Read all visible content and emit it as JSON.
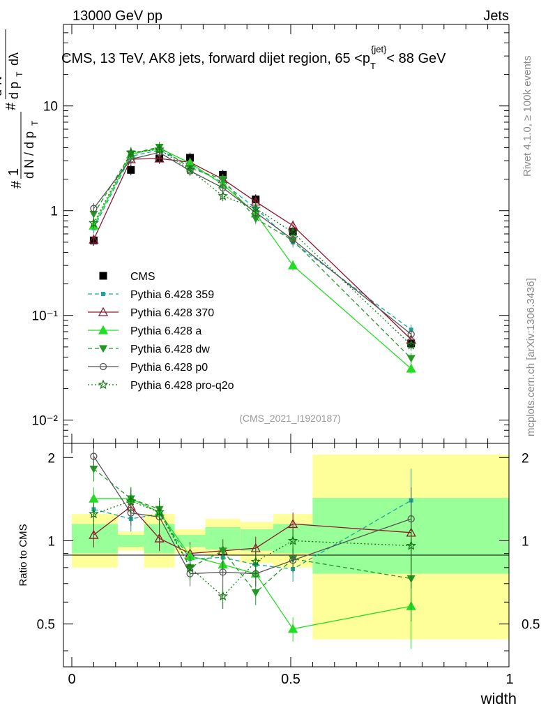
{
  "header": {
    "left": "13000 GeV pp",
    "right": "Jets"
  },
  "side_labels": {
    "rivet": "Rivet 4.1.0, ≥ 100k events",
    "mcplots": "mcplots.cern.ch [arXiv:1306.3436]"
  },
  "colors": {
    "cms": "#000000",
    "p359": "#1aa89a",
    "p370": "#8b1a2b",
    "pa": "#22dd22",
    "pdw": "#229922",
    "pp0": "#555555",
    "pq2o": "#117711",
    "band_outer": "#ffff99",
    "band_inner": "#99ff99"
  },
  "chart_data": [
    {
      "type": "line",
      "panel": "main",
      "title": "CMS, 13 TeV, AK8 jets, forward dijet region, 65 <p_T^{jet}< 88 GeV",
      "ylabel": "1/(dN/dp_T) d²N/(dp_T dλ)",
      "yscale": "log",
      "ylim": [
        0.006,
        60
      ],
      "xlim": [
        -0.02,
        1.0
      ],
      "y_ticks": [
        "10⁻²",
        "10⁻¹",
        "1",
        "10"
      ],
      "watermark": "(CMS_2021_I1920187)",
      "x": [
        0.05,
        0.135,
        0.2,
        0.27,
        0.345,
        0.42,
        0.505,
        0.775
      ],
      "series": [
        {
          "name": "CMS",
          "key": "cms",
          "values": [
            0.52,
            2.45,
            3.15,
            3.2,
            2.2,
            1.28,
            0.63,
            0.054
          ]
        },
        {
          "name": "Pythia 6.428 359",
          "key": "p359",
          "values": [
            0.68,
            3.3,
            3.8,
            2.7,
            1.85,
            1.05,
            0.5,
            0.073
          ]
        },
        {
          "name": "Pythia 6.428 370",
          "key": "p370",
          "values": [
            0.53,
            3.1,
            3.15,
            2.9,
            2.0,
            1.22,
            0.72,
            0.059
          ]
        },
        {
          "name": "Pythia 6.428 a",
          "key": "pa",
          "values": [
            0.72,
            3.45,
            3.95,
            2.85,
            1.78,
            0.94,
            0.3,
            0.031
          ]
        },
        {
          "name": "Pythia 6.428 dw",
          "key": "pdw",
          "values": [
            0.93,
            3.5,
            4.05,
            2.55,
            2.0,
            0.84,
            0.52,
            0.039
          ]
        },
        {
          "name": "Pythia 6.428 p0",
          "key": "pp0",
          "values": [
            1.05,
            3.1,
            3.6,
            2.4,
            1.65,
            0.96,
            0.53,
            0.066
          ]
        },
        {
          "name": "Pythia 6.428 pro-q2o",
          "key": "pq2o",
          "values": [
            0.76,
            3.6,
            3.85,
            2.45,
            1.38,
            1.05,
            0.62,
            0.052
          ]
        }
      ]
    },
    {
      "type": "line",
      "panel": "ratio",
      "ylabel": "Ratio to CMS",
      "xlabel": "width",
      "ylim": [
        0.35,
        2.25
      ],
      "xlim": [
        -0.02,
        1.0
      ],
      "y_ticks": [
        "0.5",
        "1",
        "2"
      ],
      "x_ticks": [
        "0",
        "0.5",
        "1"
      ],
      "bands": [
        {
          "x0": 0.0,
          "x1": 0.105,
          "outer": [
            0.8,
            1.25
          ],
          "inner": [
            0.9,
            1.15
          ]
        },
        {
          "x0": 0.105,
          "x1": 0.165,
          "outer": [
            0.92,
            1.08
          ],
          "inner": [
            0.95,
            1.05
          ]
        },
        {
          "x0": 0.165,
          "x1": 0.235,
          "outer": [
            0.8,
            1.25
          ],
          "inner": [
            0.9,
            1.15
          ]
        },
        {
          "x0": 0.235,
          "x1": 0.305,
          "outer": [
            0.9,
            1.1
          ],
          "inner": [
            0.95,
            1.05
          ]
        },
        {
          "x0": 0.305,
          "x1": 0.385,
          "outer": [
            0.88,
            1.2
          ],
          "inner": [
            0.93,
            1.12
          ]
        },
        {
          "x0": 0.385,
          "x1": 0.46,
          "outer": [
            0.83,
            1.17
          ],
          "inner": [
            0.92,
            1.1
          ]
        },
        {
          "x0": 0.46,
          "x1": 0.55,
          "outer": [
            0.8,
            1.25
          ],
          "inner": [
            0.9,
            1.15
          ]
        },
        {
          "x0": 0.55,
          "x1": 1.0,
          "outer": [
            0.44,
            2.05
          ],
          "inner": [
            0.76,
            1.43
          ]
        }
      ],
      "series": [
        {
          "name": "Pythia 6.428 359",
          "key": "p359",
          "values": [
            1.3,
            1.2,
            1.25,
            0.86,
            0.87,
            0.82,
            0.79,
            1.4
          ]
        },
        {
          "name": "Pythia 6.428 370",
          "key": "p370",
          "values": [
            1.05,
            1.33,
            1.02,
            0.9,
            0.92,
            0.94,
            1.15,
            1.07
          ]
        },
        {
          "name": "Pythia 6.428 a",
          "key": "pa",
          "values": [
            1.42,
            1.42,
            1.27,
            0.88,
            0.82,
            0.76,
            0.48,
            0.58
          ]
        },
        {
          "name": "Pythia 6.428 dw",
          "key": "pdw",
          "values": [
            1.82,
            1.42,
            1.3,
            0.8,
            0.92,
            0.65,
            0.86,
            0.73
          ]
        },
        {
          "name": "Pythia 6.428 p0",
          "key": "pp0",
          "values": [
            2.02,
            1.26,
            1.22,
            0.76,
            0.77,
            0.76,
            0.85,
            1.2
          ]
        },
        {
          "name": "Pythia 6.428 pro-q2o",
          "key": "pq2o",
          "values": [
            1.25,
            1.39,
            1.27,
            0.8,
            0.63,
            0.84,
            1.0,
            0.96
          ]
        }
      ]
    }
  ]
}
